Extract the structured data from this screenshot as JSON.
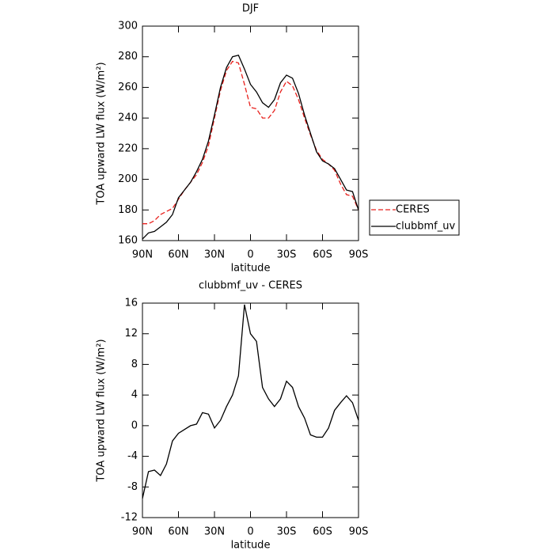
{
  "chart_data": [
    {
      "type": "line",
      "title": "DJF",
      "x_label": "latitude",
      "y_label": "TOA upward LW flux (W/m²)",
      "x": [
        90,
        85,
        80,
        75,
        70,
        65,
        60,
        55,
        50,
        45,
        40,
        35,
        30,
        25,
        20,
        15,
        10,
        5,
        0,
        -5,
        -10,
        -15,
        -20,
        -25,
        -30,
        -35,
        -40,
        -45,
        -50,
        -55,
        -60,
        -65,
        -70,
        -75,
        -80,
        -85,
        -90
      ],
      "xlim": [
        90,
        -90
      ],
      "xticks": [
        {
          "value": 90,
          "label": "90N"
        },
        {
          "value": 60,
          "label": "60N"
        },
        {
          "value": 30,
          "label": "30N"
        },
        0,
        {
          "value": -30,
          "label": "30S"
        },
        {
          "value": -60,
          "label": "60S"
        },
        {
          "value": -90,
          "label": "90S"
        }
      ],
      "ylim": [
        160,
        300
      ],
      "yticks": [
        160,
        180,
        200,
        220,
        240,
        260,
        280,
        300
      ],
      "legend": "right",
      "series": [
        {
          "name": "CERES",
          "color": "#e8201c",
          "dash": true,
          "values": [
            171,
            171,
            173,
            177,
            179,
            181,
            187,
            193,
            198,
            203,
            211,
            222,
            240,
            258,
            271,
            277,
            276,
            262,
            247,
            246,
            240,
            240,
            245,
            257,
            264,
            261,
            252,
            240,
            229,
            219,
            213,
            210,
            206,
            197,
            190,
            189,
            180
          ]
        },
        {
          "name": "clubbmf_uv",
          "color": "#000000",
          "dash": false,
          "values": [
            161,
            165,
            166,
            169,
            172,
            177,
            188,
            193,
            198,
            205,
            213,
            225,
            242,
            260,
            273,
            280,
            281,
            272,
            262,
            257,
            250,
            247,
            252,
            263,
            268,
            266,
            256,
            242,
            230,
            218,
            212,
            210,
            207,
            200,
            193,
            192,
            180
          ]
        }
      ]
    },
    {
      "type": "line",
      "title": "clubbmf_uv - CERES",
      "x_label": "latitude",
      "y_label": "TOA upward LW flux (W/m²)",
      "x": [
        90,
        85,
        80,
        75,
        70,
        65,
        60,
        55,
        50,
        45,
        40,
        35,
        30,
        25,
        20,
        15,
        10,
        5,
        0,
        -5,
        -10,
        -15,
        -20,
        -25,
        -30,
        -35,
        -40,
        -45,
        -50,
        -55,
        -60,
        -65,
        -70,
        -75,
        -80,
        -85,
        -90
      ],
      "xlim": [
        90,
        -90
      ],
      "xticks": [
        {
          "value": 90,
          "label": "90N"
        },
        {
          "value": 60,
          "label": "60N"
        },
        {
          "value": 30,
          "label": "30N"
        },
        0,
        {
          "value": -30,
          "label": "30S"
        },
        {
          "value": -60,
          "label": "60S"
        },
        {
          "value": -90,
          "label": "90S"
        }
      ],
      "ylim": [
        -12,
        16
      ],
      "yticks": [
        -12,
        -8,
        -4,
        0,
        4,
        8,
        12,
        16
      ],
      "series": [
        {
          "color": "#000000",
          "dash": false,
          "values": [
            -9.5,
            -6,
            -5.8,
            -6.5,
            -5,
            -2,
            -1,
            -0.5,
            0,
            0.2,
            1.7,
            1.5,
            -0.3,
            0.7,
            2.5,
            4,
            6.5,
            15.8,
            12,
            11,
            5,
            3.5,
            2.5,
            3.5,
            5.8,
            5,
            2.5,
            1,
            -1.2,
            -1.5,
            -1.5,
            -0.3,
            2,
            3,
            3.9,
            3,
            0.7
          ]
        }
      ]
    }
  ]
}
